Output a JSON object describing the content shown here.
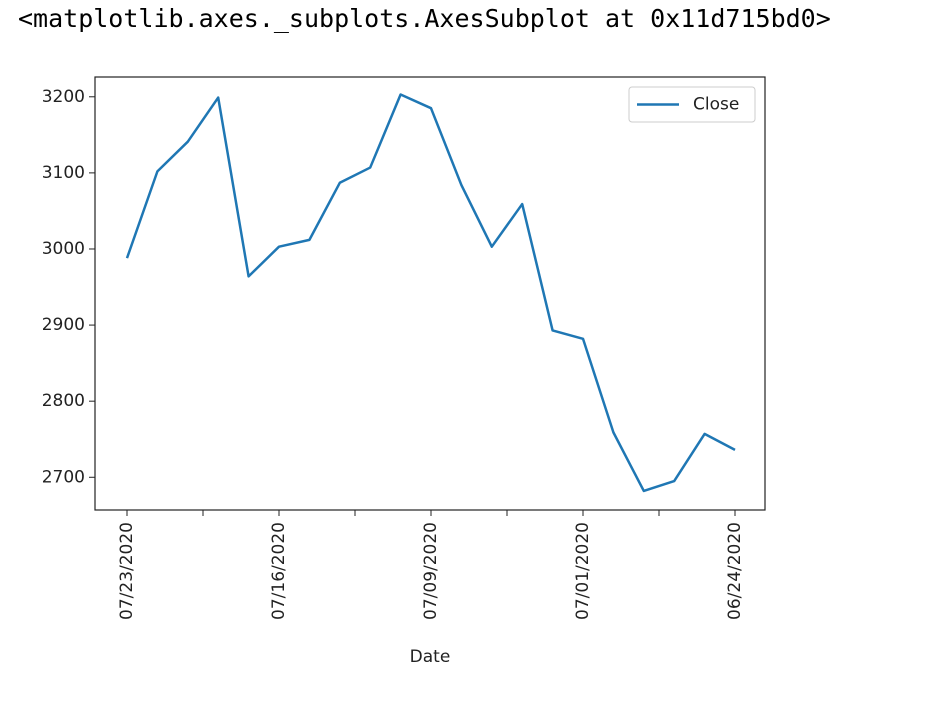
{
  "output_text": "<matplotlib.axes._subplots.AxesSubplot at 0x11d715bd0>",
  "chart_data": {
    "type": "line",
    "x_label": "Date",
    "categories": [
      "07/23/2020",
      null,
      null,
      null,
      null,
      "07/16/2020",
      null,
      null,
      null,
      null,
      "07/09/2020",
      null,
      null,
      null,
      null,
      "07/01/2020",
      null,
      null,
      null,
      null,
      "06/24/2020"
    ],
    "series": [
      {
        "name": "Close",
        "color": "#1f77b4",
        "values": [
          2988,
          3102,
          3141,
          3199,
          2964,
          3003,
          3012,
          3087,
          3107,
          3203,
          3185,
          3084,
          3003,
          3059,
          2893,
          2882,
          2759,
          2682,
          2695,
          2757,
          2736
        ]
      }
    ],
    "ylim": [
      2657,
      3226
    ],
    "yticks": [
      2700,
      2800,
      2900,
      3000,
      3100,
      3200
    ],
    "legend": "upper right",
    "grid": false
  }
}
